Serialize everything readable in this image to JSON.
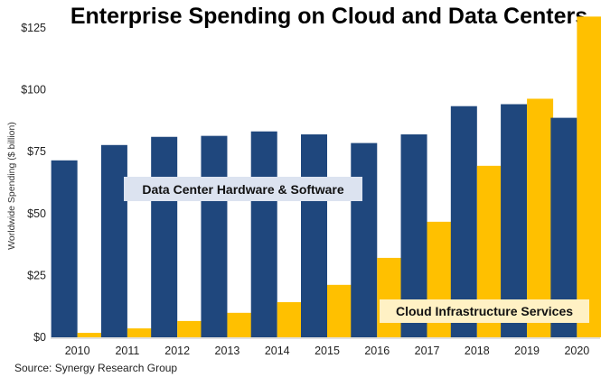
{
  "chart_data": {
    "type": "bar",
    "title": "Enterprise Spending on Cloud and Data Centers",
    "xlabel": "",
    "ylabel": "Worldwide Spending ($ billion)",
    "ylim": [
      0,
      125
    ],
    "yticks": [
      0,
      25,
      50,
      75,
      100,
      125
    ],
    "ytick_labels": [
      "$0",
      "$25",
      "$50",
      "$75",
      "$100",
      "$125"
    ],
    "grid": false,
    "categories": [
      "2010",
      "2011",
      "2012",
      "2013",
      "2014",
      "2015",
      "2016",
      "2017",
      "2018",
      "2019",
      "2020"
    ],
    "series": [
      {
        "name": "Data Center Hardware & Software",
        "color": "#1f477d",
        "values": [
          71.5,
          77.7,
          81.0,
          81.4,
          83.2,
          82.0,
          78.5,
          82.0,
          93.4,
          94.2,
          88.7
        ]
      },
      {
        "name": "Cloud Infrastructure Services",
        "color": "#ffc000",
        "values": [
          1.8,
          3.6,
          6.6,
          9.9,
          14.2,
          21.2,
          32.1,
          46.7,
          69.3,
          96.4,
          129.6
        ]
      }
    ],
    "annotations": [
      {
        "text": "Data Center Hardware & Software",
        "series": 0,
        "box_color": "#dce3f0"
      },
      {
        "text": "Cloud Infrastructure Services",
        "series": 1,
        "box_color": "#fff1c4"
      }
    ],
    "source": "Source: Synergy Research Group"
  }
}
